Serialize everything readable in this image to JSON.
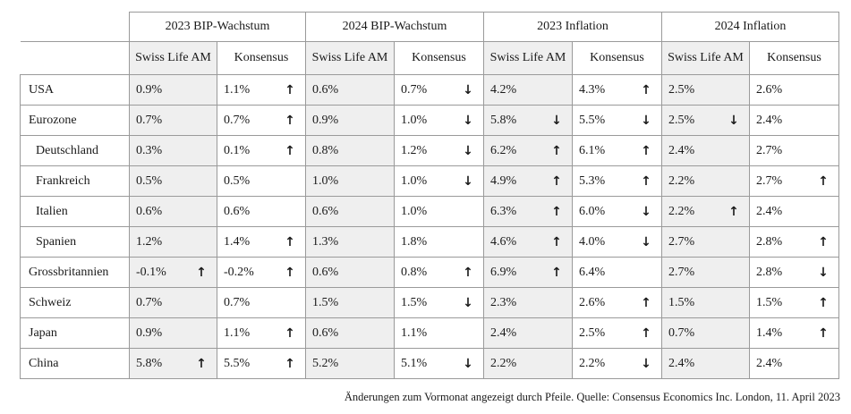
{
  "table": {
    "group_headers": [
      "2023 BIP-Wachstum",
      "2024 BIP-Wachstum",
      "2023 Inflation",
      "2024 Inflation"
    ],
    "sub_headers": [
      "Swiss Life AM",
      "Konsensus"
    ],
    "arrows": {
      "up": "↑",
      "down": "↓",
      "none": ""
    },
    "rows": [
      {
        "country": "USA",
        "indent": false,
        "cells": [
          {
            "v": "0.9%",
            "a": "none"
          },
          {
            "v": "1.1%",
            "a": "up"
          },
          {
            "v": "0.6%",
            "a": "none"
          },
          {
            "v": "0.7%",
            "a": "down"
          },
          {
            "v": "4.2%",
            "a": "none"
          },
          {
            "v": "4.3%",
            "a": "up"
          },
          {
            "v": "2.5%",
            "a": "none"
          },
          {
            "v": "2.6%",
            "a": "none"
          }
        ]
      },
      {
        "country": "Eurozone",
        "indent": false,
        "cells": [
          {
            "v": "0.7%",
            "a": "none"
          },
          {
            "v": "0.7%",
            "a": "up"
          },
          {
            "v": "0.9%",
            "a": "none"
          },
          {
            "v": "1.0%",
            "a": "down"
          },
          {
            "v": "5.8%",
            "a": "down"
          },
          {
            "v": "5.5%",
            "a": "down"
          },
          {
            "v": "2.5%",
            "a": "down"
          },
          {
            "v": "2.4%",
            "a": "none"
          }
        ]
      },
      {
        "country": "Deutschland",
        "indent": true,
        "cells": [
          {
            "v": "0.3%",
            "a": "none"
          },
          {
            "v": "0.1%",
            "a": "up"
          },
          {
            "v": "0.8%",
            "a": "none"
          },
          {
            "v": "1.2%",
            "a": "down"
          },
          {
            "v": "6.2%",
            "a": "up"
          },
          {
            "v": "6.1%",
            "a": "up"
          },
          {
            "v": "2.4%",
            "a": "none"
          },
          {
            "v": "2.7%",
            "a": "none"
          }
        ]
      },
      {
        "country": "Frankreich",
        "indent": true,
        "cells": [
          {
            "v": "0.5%",
            "a": "none"
          },
          {
            "v": "0.5%",
            "a": "none"
          },
          {
            "v": "1.0%",
            "a": "none"
          },
          {
            "v": "1.0%",
            "a": "down"
          },
          {
            "v": "4.9%",
            "a": "up"
          },
          {
            "v": "5.3%",
            "a": "up"
          },
          {
            "v": "2.2%",
            "a": "none"
          },
          {
            "v": "2.7%",
            "a": "up"
          }
        ]
      },
      {
        "country": "Italien",
        "indent": true,
        "cells": [
          {
            "v": "0.6%",
            "a": "none"
          },
          {
            "v": "0.6%",
            "a": "none"
          },
          {
            "v": "0.6%",
            "a": "none"
          },
          {
            "v": "1.0%",
            "a": "none"
          },
          {
            "v": "6.3%",
            "a": "up"
          },
          {
            "v": "6.0%",
            "a": "down"
          },
          {
            "v": "2.2%",
            "a": "up"
          },
          {
            "v": "2.4%",
            "a": "none"
          }
        ]
      },
      {
        "country": "Spanien",
        "indent": true,
        "cells": [
          {
            "v": "1.2%",
            "a": "none"
          },
          {
            "v": "1.4%",
            "a": "up"
          },
          {
            "v": "1.3%",
            "a": "none"
          },
          {
            "v": "1.8%",
            "a": "none"
          },
          {
            "v": "4.6%",
            "a": "up"
          },
          {
            "v": "4.0%",
            "a": "down"
          },
          {
            "v": "2.7%",
            "a": "none"
          },
          {
            "v": "2.8%",
            "a": "up"
          }
        ]
      },
      {
        "country": "Grossbritannien",
        "indent": false,
        "cells": [
          {
            "v": "-0.1%",
            "a": "up"
          },
          {
            "v": "-0.2%",
            "a": "up"
          },
          {
            "v": "0.6%",
            "a": "none"
          },
          {
            "v": "0.8%",
            "a": "up"
          },
          {
            "v": "6.9%",
            "a": "up"
          },
          {
            "v": "6.4%",
            "a": "none"
          },
          {
            "v": "2.7%",
            "a": "none"
          },
          {
            "v": "2.8%",
            "a": "down"
          }
        ]
      },
      {
        "country": "Schweiz",
        "indent": false,
        "cells": [
          {
            "v": "0.7%",
            "a": "none"
          },
          {
            "v": "0.7%",
            "a": "none"
          },
          {
            "v": "1.5%",
            "a": "none"
          },
          {
            "v": "1.5%",
            "a": "down"
          },
          {
            "v": "2.3%",
            "a": "none"
          },
          {
            "v": "2.6%",
            "a": "up"
          },
          {
            "v": "1.5%",
            "a": "none"
          },
          {
            "v": "1.5%",
            "a": "up"
          }
        ]
      },
      {
        "country": "Japan",
        "indent": false,
        "cells": [
          {
            "v": "0.9%",
            "a": "none"
          },
          {
            "v": "1.1%",
            "a": "up"
          },
          {
            "v": "0.6%",
            "a": "none"
          },
          {
            "v": "1.1%",
            "a": "none"
          },
          {
            "v": "2.4%",
            "a": "none"
          },
          {
            "v": "2.5%",
            "a": "up"
          },
          {
            "v": "0.7%",
            "a": "none"
          },
          {
            "v": "1.4%",
            "a": "up"
          }
        ]
      },
      {
        "country": "China",
        "indent": false,
        "cells": [
          {
            "v": "5.8%",
            "a": "up"
          },
          {
            "v": "5.5%",
            "a": "up"
          },
          {
            "v": "5.2%",
            "a": "none"
          },
          {
            "v": "5.1%",
            "a": "down"
          },
          {
            "v": "2.2%",
            "a": "none"
          },
          {
            "v": "2.2%",
            "a": "down"
          },
          {
            "v": "2.4%",
            "a": "none"
          },
          {
            "v": "2.4%",
            "a": "none"
          }
        ]
      }
    ]
  },
  "footnote": "Änderungen zum Vormonat angezeigt durch Pfeile. Quelle: Consensus Economics Inc. London, 11. April 2023",
  "colors": {
    "shaded_cell": "#efefef",
    "grid_line": "#9a9a9a",
    "text": "#1a1a1a"
  }
}
